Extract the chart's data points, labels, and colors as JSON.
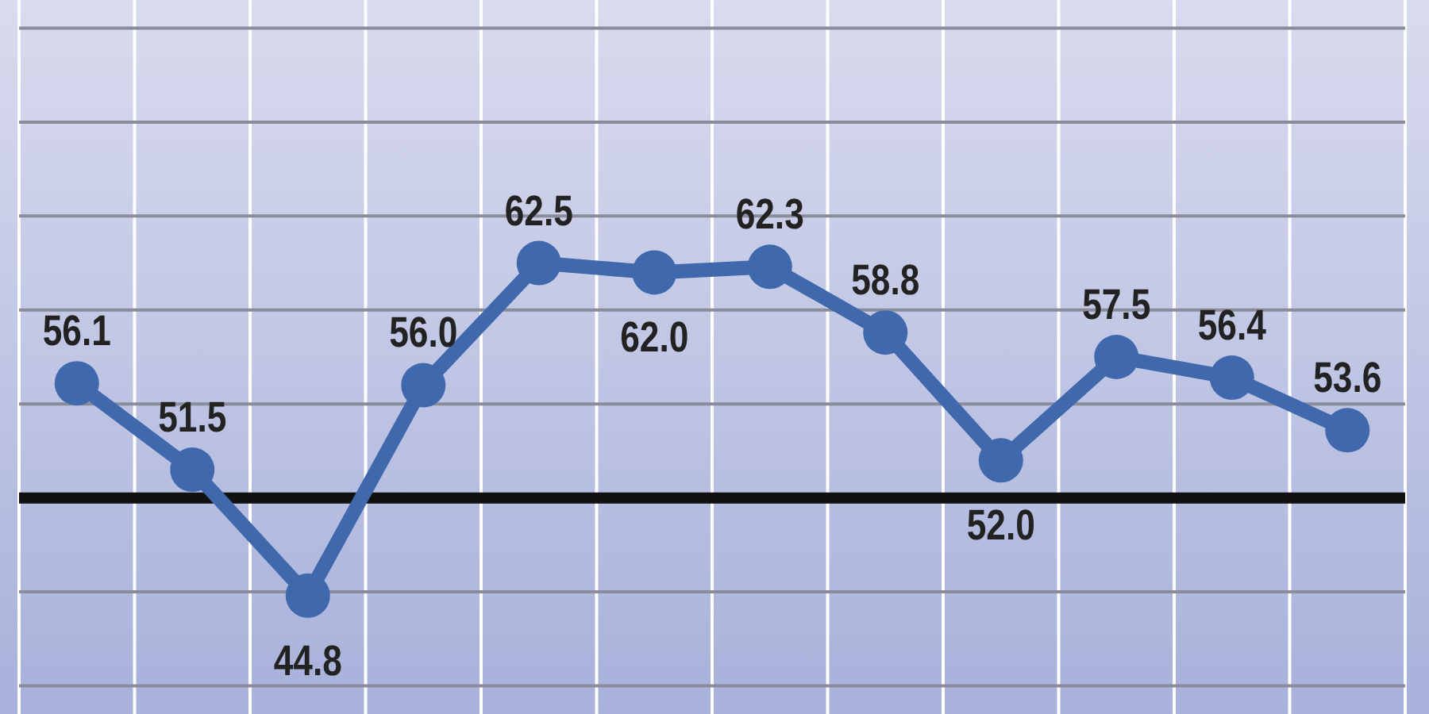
{
  "chart_data": {
    "type": "line",
    "categories": [
      null,
      null,
      null,
      null,
      null,
      null,
      null,
      null,
      null,
      null,
      null,
      null
    ],
    "series": [
      {
        "color": "#3f68ad",
        "values": [
          56.1,
          51.5,
          44.8,
          56.0,
          62.5,
          62.0,
          62.3,
          58.8,
          52.0,
          57.5,
          56.4,
          53.6
        ],
        "value_labels": [
          "56.1",
          "51.5",
          "44.8",
          "56.0",
          "62.5",
          "62.0",
          "62.3",
          "58.8",
          "52.0",
          "57.5",
          "56.4",
          "53.6"
        ]
      }
    ],
    "ylim": [
      38.5,
      76.5
    ],
    "yticks": [
      {
        "value": 40,
        "label": null
      },
      {
        "value": 45,
        "label": null
      },
      {
        "value": 50,
        "label": null
      },
      {
        "value": 55,
        "label": null
      },
      {
        "value": 60,
        "label": null
      },
      {
        "value": 65,
        "label": null
      },
      {
        "value": 70,
        "label": null
      },
      {
        "value": 75,
        "label": null
      }
    ],
    "ref_lines": [
      {
        "axis": "y",
        "value": 50,
        "color": "#111111"
      }
    ],
    "grid": true,
    "marker": "circle",
    "line_style": "solid"
  }
}
